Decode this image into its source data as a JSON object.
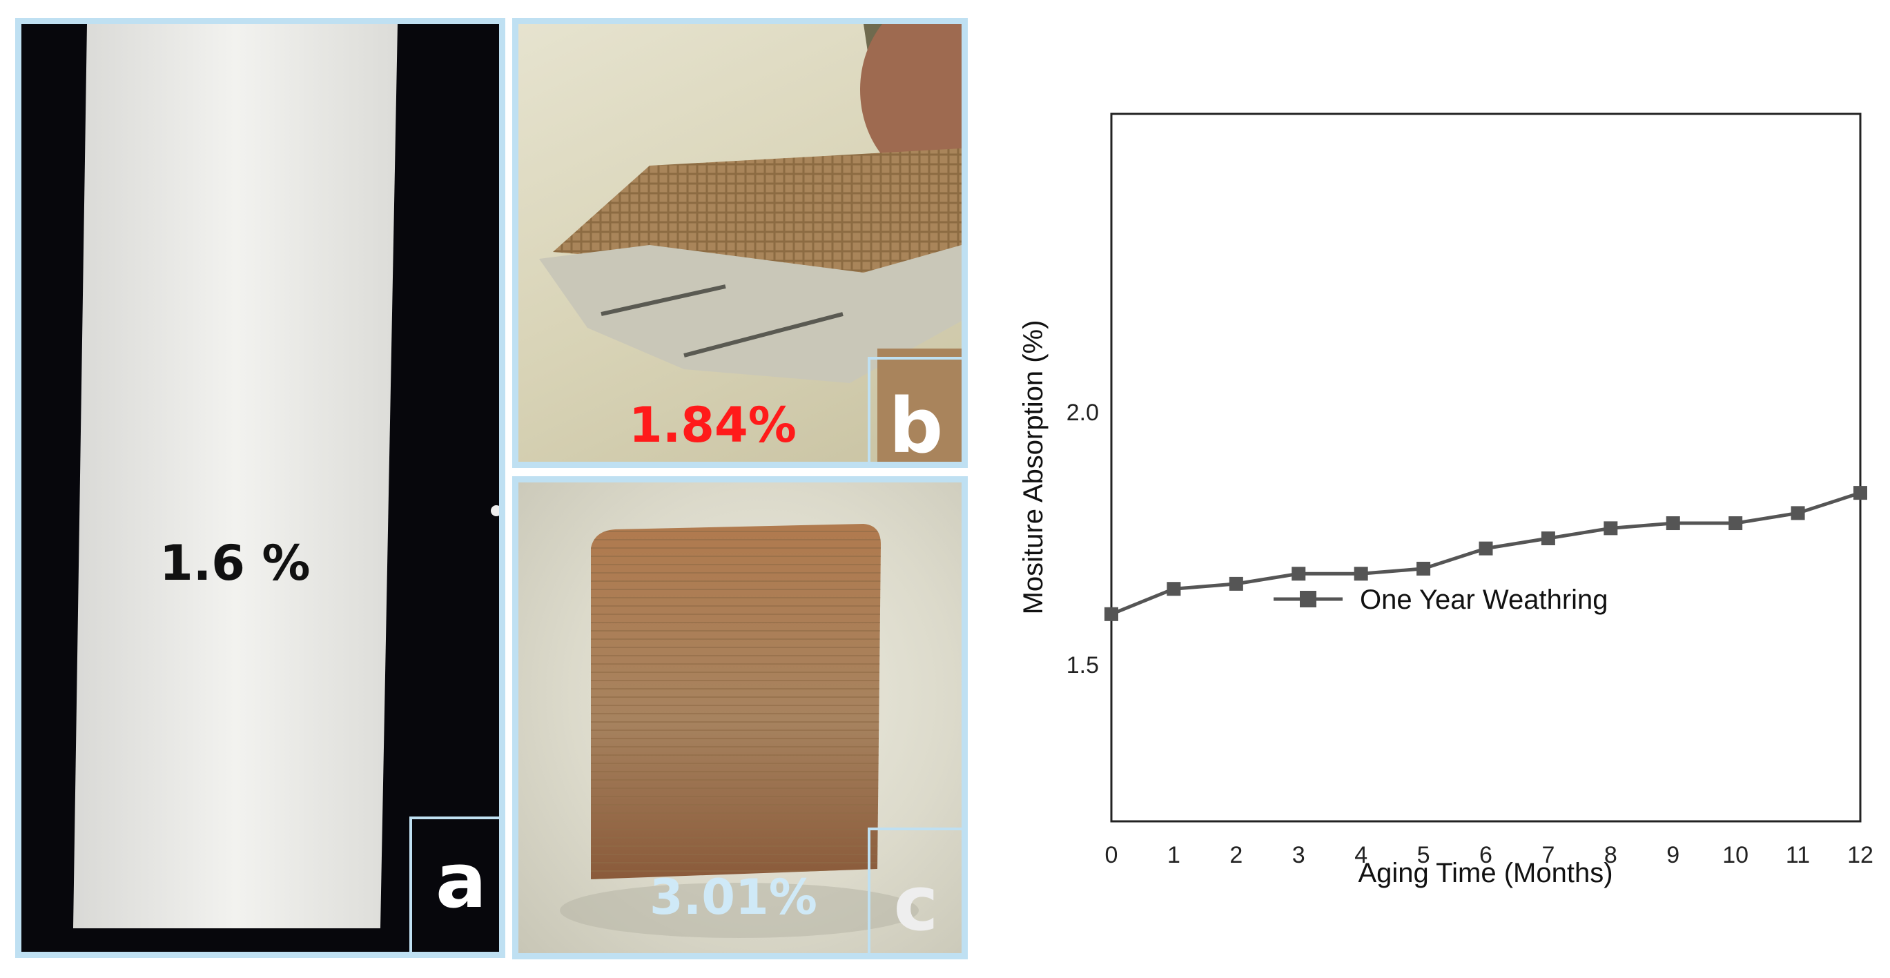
{
  "panels": {
    "a": {
      "letter": "a",
      "value_label": "1.6 %"
    },
    "b": {
      "letter": "b",
      "value_label": "1.84%",
      "label_color": "#ff1a1a"
    },
    "c": {
      "letter": "c",
      "value_label": "3.01%",
      "label_color": "#cfe9f7"
    }
  },
  "chart_data": {
    "type": "line",
    "xlabel": "Aging Time (Months)",
    "ylabel": "Mositure Absorption (%)",
    "x": [
      0,
      1,
      2,
      3,
      4,
      5,
      6,
      7,
      8,
      9,
      10,
      11,
      12
    ],
    "xticks": [
      "0",
      "1",
      "2",
      "3",
      "4",
      "5",
      "6",
      "7",
      "8",
      "9",
      "10",
      "11",
      "12"
    ],
    "yticks": [
      "1.5",
      "2.0"
    ],
    "xlim": [
      0,
      12
    ],
    "ylim": [
      1.19,
      2.59
    ],
    "series": [
      {
        "name": "One Year Weathring",
        "values": [
          1.6,
          1.65,
          1.66,
          1.68,
          1.68,
          1.69,
          1.73,
          1.75,
          1.77,
          1.78,
          1.78,
          1.8,
          1.84
        ],
        "color": "#555555",
        "marker": "square"
      }
    ],
    "grid": false,
    "legend_position": "center-left"
  }
}
